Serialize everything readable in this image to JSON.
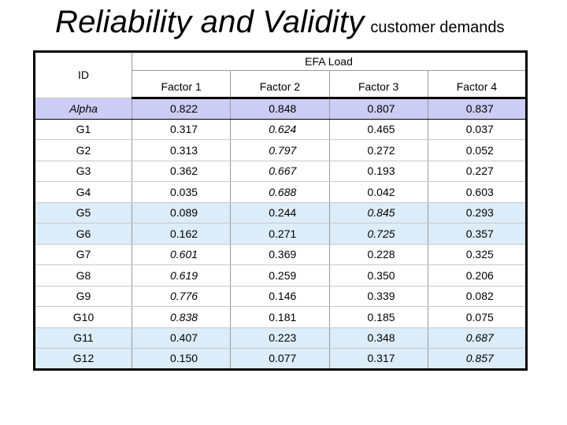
{
  "title": {
    "main": "Reliability and Validity",
    "sub": "customer demands"
  },
  "table": {
    "id_header": "ID",
    "group_header": "EFA Load",
    "factor_headers": [
      "Factor 1",
      "Factor 2",
      "Factor 3",
      "Factor 4"
    ],
    "rows": [
      {
        "id": "Alpha",
        "values": [
          "0.822",
          "0.848",
          "0.807",
          "0.837"
        ],
        "bold": [],
        "style": "alpha"
      },
      {
        "id": "G1",
        "values": [
          "0.317",
          "0.624",
          "0.465",
          "0.037"
        ],
        "bold": [
          1
        ],
        "style": ""
      },
      {
        "id": "G2",
        "values": [
          "0.313",
          "0.797",
          "0.272",
          "0.052"
        ],
        "bold": [
          1
        ],
        "style": ""
      },
      {
        "id": "G3",
        "values": [
          "0.362",
          "0.667",
          "0.193",
          "0.227"
        ],
        "bold": [
          1
        ],
        "style": ""
      },
      {
        "id": "G4",
        "values": [
          "0.035",
          "0.688",
          "0.042",
          "0.603"
        ],
        "bold": [
          1
        ],
        "style": ""
      },
      {
        "id": "G5",
        "values": [
          "0.089",
          "0.244",
          "0.845",
          "0.293"
        ],
        "bold": [
          2
        ],
        "style": "highlight"
      },
      {
        "id": "G6",
        "values": [
          "0.162",
          "0.271",
          "0.725",
          "0.357"
        ],
        "bold": [
          2
        ],
        "style": "highlight"
      },
      {
        "id": "G7",
        "values": [
          "0.601",
          "0.369",
          "0.228",
          "0.325"
        ],
        "bold": [
          0
        ],
        "style": ""
      },
      {
        "id": "G8",
        "values": [
          "0.619",
          "0.259",
          "0.350",
          "0.206"
        ],
        "bold": [
          0
        ],
        "style": ""
      },
      {
        "id": "G9",
        "values": [
          "0.776",
          "0.146",
          "0.339",
          "0.082"
        ],
        "bold": [
          0
        ],
        "style": ""
      },
      {
        "id": "G10",
        "values": [
          "0.838",
          "0.181",
          "0.185",
          "0.075"
        ],
        "bold": [
          0
        ],
        "style": ""
      },
      {
        "id": "G11",
        "values": [
          "0.407",
          "0.223",
          "0.348",
          "0.687"
        ],
        "bold": [
          3
        ],
        "style": "highlight"
      },
      {
        "id": "G12",
        "values": [
          "0.150",
          "0.077",
          "0.317",
          "0.857"
        ],
        "bold": [
          3
        ],
        "style": "highlight"
      }
    ]
  },
  "colors": {
    "alpha_row": "#ccccf5",
    "highlight_row": "#dcecf9",
    "border": "#000000"
  }
}
